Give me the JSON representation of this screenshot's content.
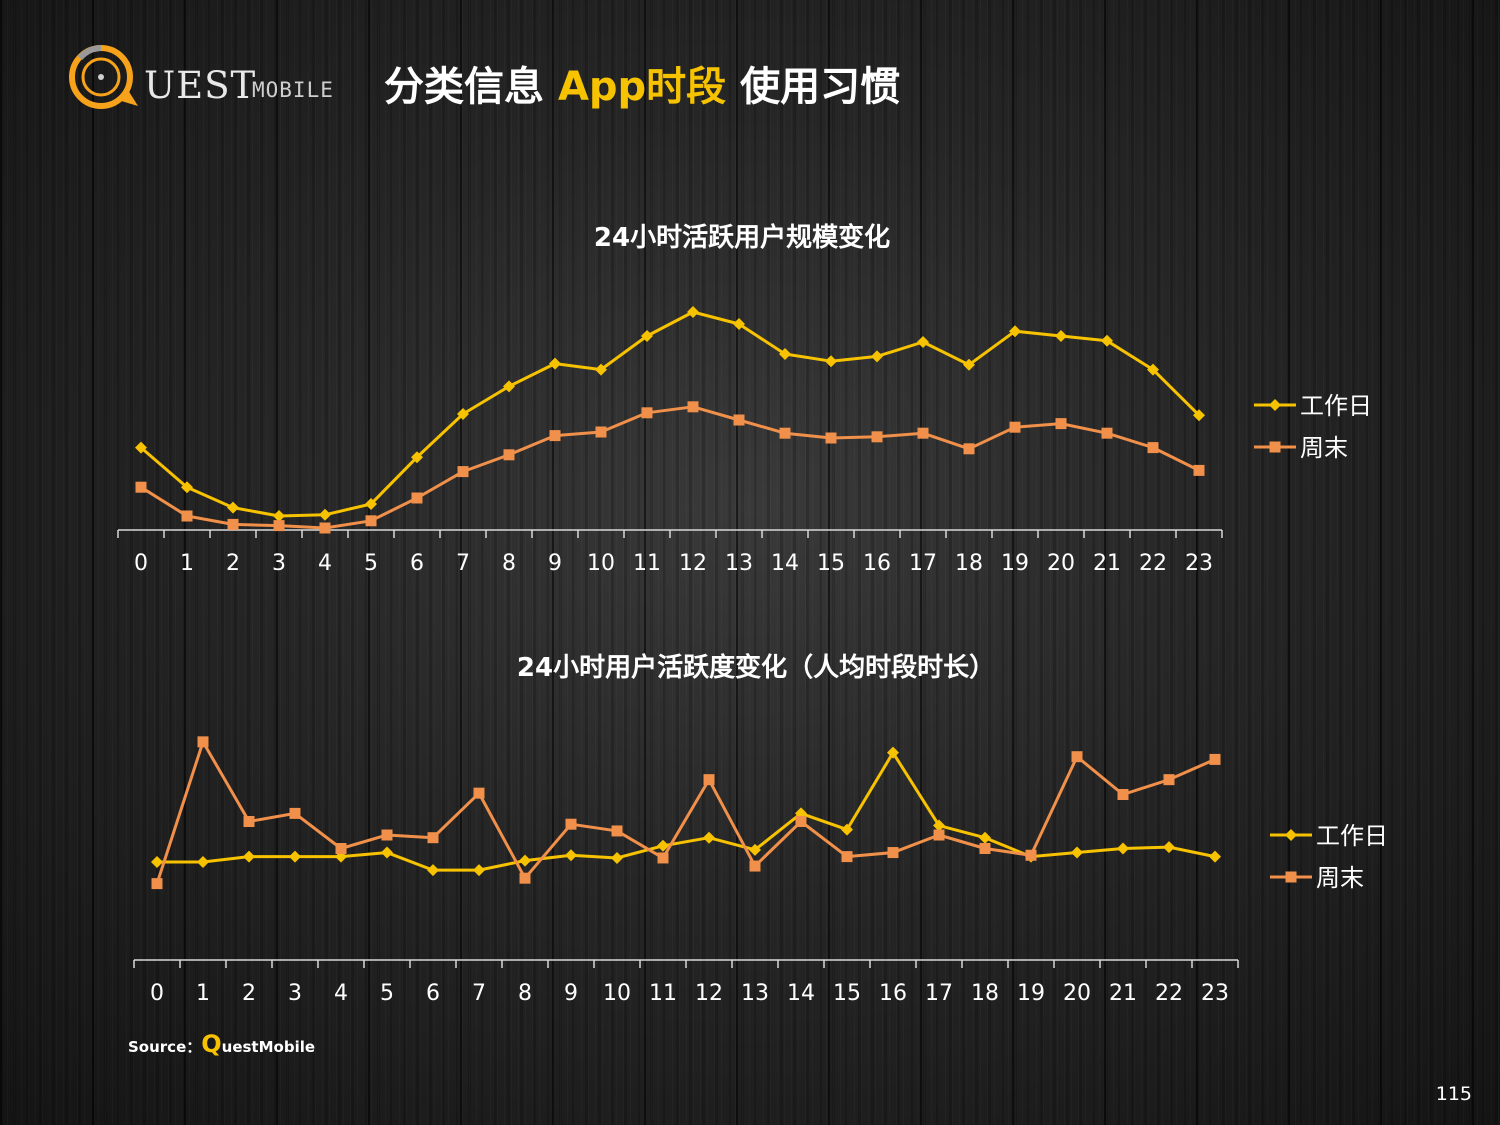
{
  "header": {
    "logo_text": "UEST",
    "logo_sub": "MOBILE",
    "title_part1": "分类信息 ",
    "title_part2": "App时段",
    "title_part3": " 使用习惯"
  },
  "colors": {
    "workday": "#f7c200",
    "weekend": "#f0904a",
    "accent": "#f7c200"
  },
  "chart_data": [
    {
      "type": "line",
      "title": "24小时活跃用户规模变化",
      "categories": [
        "0",
        "1",
        "2",
        "3",
        "4",
        "5",
        "6",
        "7",
        "8",
        "9",
        "10",
        "11",
        "12",
        "13",
        "14",
        "15",
        "16",
        "17",
        "18",
        "19",
        "20",
        "21",
        "22",
        "23"
      ],
      "series": [
        {
          "name": "工作日",
          "marker": "diamond",
          "values": [
            38.5,
            22,
            13.5,
            10,
            10.5,
            15,
            34.5,
            52.5,
            64,
            73.5,
            71,
            85,
            95,
            90,
            77.5,
            74.5,
            76.5,
            82.5,
            73,
            87,
            85,
            83,
            71,
            52
          ]
        },
        {
          "name": "周末",
          "marker": "square",
          "values": [
            22,
            10,
            6.5,
            6,
            5,
            8,
            17.5,
            28.5,
            35.5,
            43.5,
            45,
            53,
            55.5,
            50,
            44.5,
            42.5,
            43,
            44.5,
            38,
            47,
            48.5,
            44.5,
            38.5,
            29
          ]
        }
      ],
      "legend": "right",
      "ylim": [
        0,
        100
      ],
      "grid": false
    },
    {
      "type": "line",
      "title": "24小时用户活跃度变化（人均时段时长）",
      "categories": [
        "0",
        "1",
        "2",
        "3",
        "4",
        "5",
        "6",
        "7",
        "8",
        "9",
        "10",
        "11",
        "12",
        "13",
        "14",
        "15",
        "16",
        "17",
        "18",
        "19",
        "20",
        "21",
        "22",
        "23"
      ],
      "series": [
        {
          "name": "工作日",
          "marker": "diamond",
          "values": [
            40,
            40,
            42,
            42,
            42,
            43.5,
            37,
            37,
            40.5,
            42.5,
            41.5,
            46,
            49,
            44.5,
            58,
            52,
            80.5,
            53.5,
            49,
            42,
            43.5,
            45,
            45.5,
            42
          ]
        },
        {
          "name": "周末",
          "marker": "square",
          "values": [
            32,
            84.5,
            55,
            58,
            45,
            50,
            49,
            65.5,
            34,
            54,
            51.5,
            41.5,
            70.5,
            38.5,
            55,
            42,
            43.5,
            50,
            45,
            42.5,
            79,
            65,
            70.5,
            78
          ]
        }
      ],
      "legend": "right",
      "ylim": [
        0,
        100
      ],
      "grid": false
    }
  ],
  "footer": {
    "source_label": "Source：",
    "source_q": "Q",
    "source_name": "uestMobile",
    "page_number": "115"
  }
}
